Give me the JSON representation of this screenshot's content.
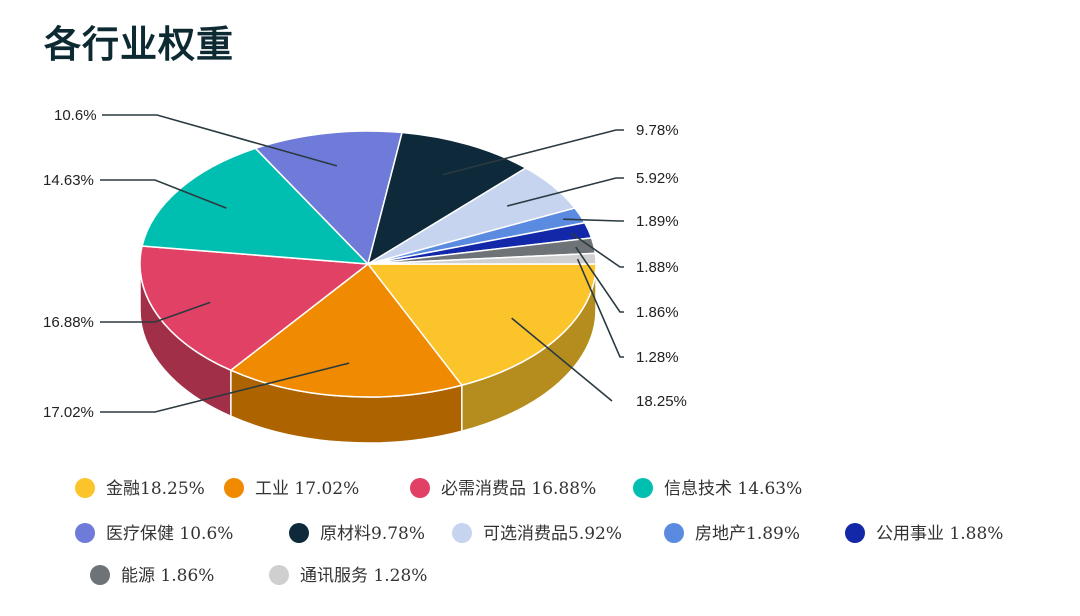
{
  "title": "各行业权重",
  "chart_data": {
    "type": "pie",
    "title": "各行业权重",
    "series": [
      {
        "name": "金融",
        "value": 18.25,
        "pct_label": "18.25%",
        "legend_label": "金融18.25%",
        "color": "#FCC42B"
      },
      {
        "name": "工业",
        "value": 17.02,
        "pct_label": "17.02%",
        "legend_label": "工业 17.02%",
        "color": "#F08A00"
      },
      {
        "name": "必需消费品",
        "value": 16.88,
        "pct_label": "16.88%",
        "legend_label": "必需消费品 16.88%",
        "color": "#E04164"
      },
      {
        "name": "信息技术",
        "value": 14.63,
        "pct_label": "14.63%",
        "legend_label": "信息技术 14.63%",
        "color": "#00BFB0"
      },
      {
        "name": "医疗保健",
        "value": 10.6,
        "pct_label": "10.6%",
        "legend_label": "医疗保健 10.6%",
        "color": "#6F7BD8"
      },
      {
        "name": "原材料",
        "value": 9.78,
        "pct_label": "9.78%",
        "legend_label": "原材料9.78%",
        "color": "#0E2A3A"
      },
      {
        "name": "可选消费品",
        "value": 5.92,
        "pct_label": "5.92%",
        "legend_label": "可选消费品5.92%",
        "color": "#C7D4F0"
      },
      {
        "name": "房地产",
        "value": 1.89,
        "pct_label": "1.89%",
        "legend_label": "房地产1.89%",
        "color": "#5B8BE0"
      },
      {
        "name": "公用事业",
        "value": 1.88,
        "pct_label": "1.88%",
        "legend_label": "公用事业 1.88%",
        "color": "#1228A8"
      },
      {
        "name": "能源",
        "value": 1.86,
        "pct_label": "1.86%",
        "legend_label": "能源 1.86%",
        "color": "#6E7378"
      },
      {
        "name": "通讯服务",
        "value": 1.28,
        "pct_label": "1.28%",
        "legend_label": "通讯服务 1.28%",
        "color": "#CFCFCF"
      }
    ],
    "legend_position": "bottom",
    "style": "3d-pie"
  }
}
